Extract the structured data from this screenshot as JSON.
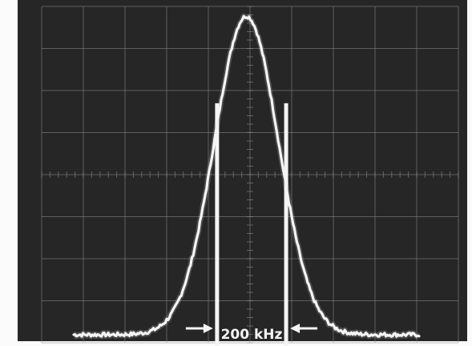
{
  "screen": {
    "background": "#262626",
    "trace_color": "#f4f4f4",
    "graticule_color": "#8c8c8c",
    "frame_color": "#fbfbfb"
  },
  "graticule": {
    "divisions_x": 10,
    "divisions_y": 8,
    "minor_ticks_per_division": 5
  },
  "trace": {
    "shape": "gaussian bell",
    "peak_level": 0.98,
    "center": 0.5,
    "sigma": 0.093,
    "baseline_level": 0.01
  },
  "markers": {
    "positions": [
      0.415,
      0.615
    ],
    "top_level": 0.715,
    "annotation": "200 kHz",
    "arrow_style": "inward"
  }
}
